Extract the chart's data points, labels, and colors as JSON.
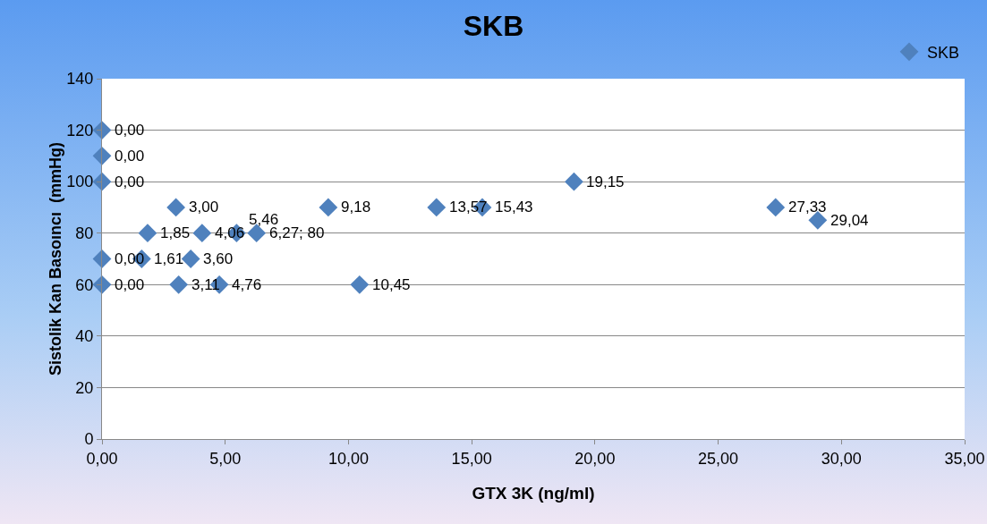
{
  "chart_data": {
    "type": "scatter",
    "title": "SKB",
    "xlabel": "GTX 3K (ng/ml)",
    "ylabel": "Sistolik Kan Basoıncı  (mmHg)",
    "series": [
      {
        "name": "SKB",
        "color": "#4f81bd",
        "x": [
          0,
          0,
          0,
          0,
          0,
          3.0,
          9.18,
          13.57,
          15.43,
          19.15,
          27.33,
          29.04,
          1.85,
          4.06,
          5.46,
          6.27,
          1.61,
          3.6,
          3.11,
          4.76,
          10.45
        ],
        "values": [
          120,
          110,
          100,
          70,
          60,
          90,
          90,
          90,
          90,
          100,
          90,
          85,
          80,
          80,
          80,
          80,
          70,
          70,
          60,
          60,
          60
        ]
      }
    ],
    "annotations": [
      {
        "text": "0,00",
        "x": 0,
        "y": 120
      },
      {
        "text": "0,00",
        "x": 0,
        "y": 110
      },
      {
        "text": "0,00",
        "x": 0,
        "y": 100
      },
      {
        "text": "0,00",
        "x": 0,
        "y": 70
      },
      {
        "text": "0,00",
        "x": 0,
        "y": 60
      },
      {
        "text": "3,00",
        "x": 3.0,
        "y": 90
      },
      {
        "text": "9,18",
        "x": 9.18,
        "y": 90
      },
      {
        "text": "13,57",
        "x": 13.57,
        "y": 90
      },
      {
        "text": "15,43",
        "x": 15.43,
        "y": 90
      },
      {
        "text": "19,15",
        "x": 19.15,
        "y": 100
      },
      {
        "text": "27,33",
        "x": 27.33,
        "y": 90
      },
      {
        "text": "29,04",
        "x": 29.04,
        "y": 85
      },
      {
        "text": "1,85",
        "x": 1.85,
        "y": 80
      },
      {
        "text": "4,06",
        "x": 4.06,
        "y": 80
      },
      {
        "text": "5,46",
        "x": 5.46,
        "y": 80
      },
      {
        "text": "6,27; 80",
        "x": 6.27,
        "y": 80
      },
      {
        "text": "1,61",
        "x": 1.61,
        "y": 70
      },
      {
        "text": "3,60",
        "x": 3.6,
        "y": 70
      },
      {
        "text": "3,11",
        "x": 3.11,
        "y": 60
      },
      {
        "text": "4,76",
        "x": 4.76,
        "y": 60
      },
      {
        "text": "10,45",
        "x": 10.45,
        "y": 60
      }
    ],
    "xlim": [
      0,
      35
    ],
    "xticks": [
      {
        "value": 0,
        "label": "0,00"
      },
      {
        "value": 5,
        "label": "5,00"
      },
      {
        "value": 10,
        "label": "10,00"
      },
      {
        "value": 15,
        "label": "15,00"
      },
      {
        "value": 20,
        "label": "20,00"
      },
      {
        "value": 25,
        "label": "25,00"
      },
      {
        "value": 30,
        "label": "30,00"
      },
      {
        "value": 35,
        "label": "35,00"
      }
    ],
    "ylim": [
      0,
      140
    ],
    "yticks": [
      0,
      20,
      40,
      60,
      80,
      100,
      120,
      140
    ],
    "grid": "y",
    "legend": "top right",
    "marker": "diamond"
  }
}
